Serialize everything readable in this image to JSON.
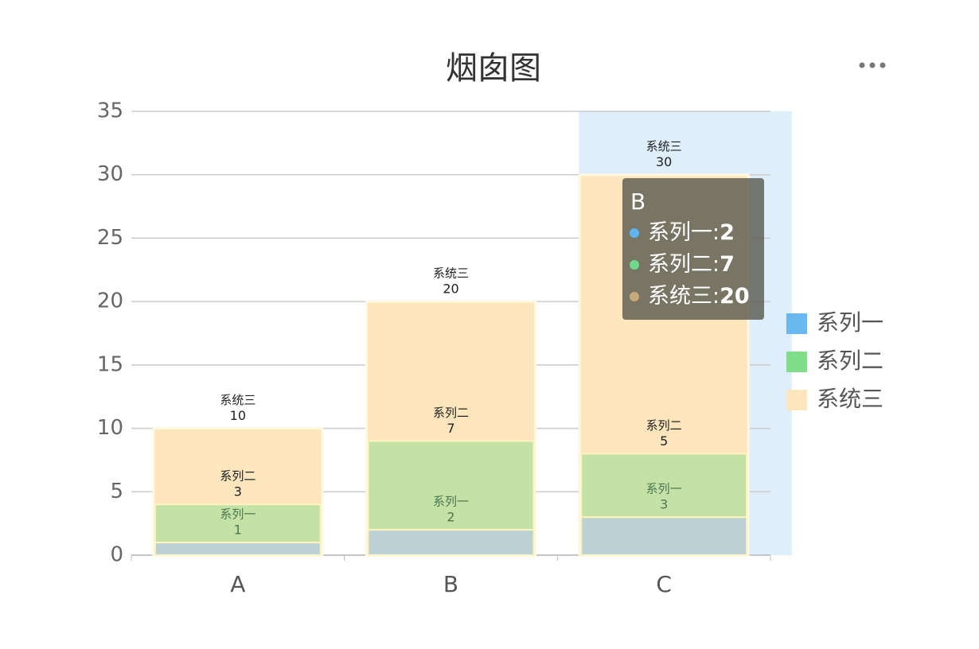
{
  "chart_data": {
    "type": "chimney",
    "title": "烟囱图",
    "categories": [
      "A",
      "B",
      "C"
    ],
    "series": [
      {
        "name": "系列一",
        "color": "#6ab8f0",
        "values": [
          1,
          2,
          3
        ]
      },
      {
        "name": "系列二",
        "color": "#80dd8a",
        "values": [
          3,
          7,
          5
        ]
      },
      {
        "name": "系统三",
        "color": "#fde6bd",
        "values": [
          10,
          20,
          30
        ]
      }
    ],
    "ylim": [
      0,
      35
    ],
    "yticks": [
      0,
      5,
      10,
      15,
      20,
      25,
      30,
      35
    ],
    "grid": true,
    "legend": "right",
    "tooltip": {
      "category": 1
    }
  }
}
